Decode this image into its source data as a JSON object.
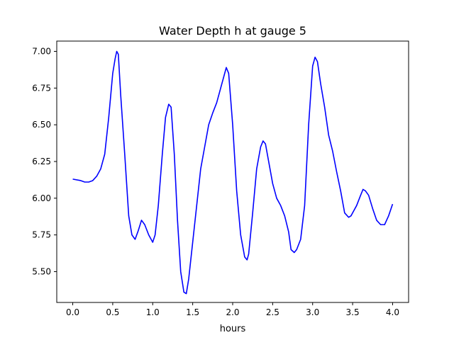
{
  "chart_data": {
    "type": "line",
    "title": "Water Depth h at gauge 5",
    "xlabel": "hours",
    "ylabel": "",
    "xlim": [
      -0.2,
      4.2
    ],
    "ylim": [
      5.29,
      7.07
    ],
    "xticks": [
      0.0,
      0.5,
      1.0,
      1.5,
      2.0,
      2.5,
      3.0,
      3.5,
      4.0
    ],
    "xtick_labels": [
      "0.0",
      "0.5",
      "1.0",
      "1.5",
      "2.0",
      "2.5",
      "3.0",
      "3.5",
      "4.0"
    ],
    "yticks": [
      5.5,
      5.75,
      6.0,
      6.25,
      6.5,
      6.75,
      7.0
    ],
    "ytick_labels": [
      "5.50",
      "5.75",
      "6.00",
      "6.25",
      "6.50",
      "6.75",
      "7.00"
    ],
    "grid": false,
    "series": [
      {
        "color": "#0000ff",
        "x": [
          0.0,
          0.1,
          0.15,
          0.2,
          0.25,
          0.3,
          0.35,
          0.4,
          0.45,
          0.5,
          0.53,
          0.55,
          0.57,
          0.6,
          0.65,
          0.7,
          0.74,
          0.78,
          0.82,
          0.86,
          0.9,
          0.95,
          1.0,
          1.03,
          1.07,
          1.12,
          1.16,
          1.2,
          1.23,
          1.27,
          1.31,
          1.35,
          1.39,
          1.42,
          1.45,
          1.5,
          1.55,
          1.6,
          1.65,
          1.7,
          1.75,
          1.8,
          1.85,
          1.9,
          1.92,
          1.95,
          2.0,
          2.05,
          2.1,
          2.15,
          2.18,
          2.2,
          2.25,
          2.3,
          2.35,
          2.38,
          2.41,
          2.45,
          2.5,
          2.55,
          2.6,
          2.65,
          2.7,
          2.73,
          2.77,
          2.8,
          2.85,
          2.9,
          2.95,
          3.0,
          3.03,
          3.06,
          3.1,
          3.15,
          3.2,
          3.25,
          3.3,
          3.35,
          3.4,
          3.45,
          3.48,
          3.5,
          3.55,
          3.6,
          3.63,
          3.66,
          3.7,
          3.75,
          3.8,
          3.85,
          3.9,
          3.95,
          4.0
        ],
        "y": [
          6.13,
          6.12,
          6.11,
          6.11,
          6.12,
          6.15,
          6.2,
          6.3,
          6.55,
          6.85,
          6.95,
          7.0,
          6.98,
          6.7,
          6.3,
          5.88,
          5.75,
          5.72,
          5.78,
          5.85,
          5.82,
          5.75,
          5.7,
          5.75,
          5.95,
          6.3,
          6.55,
          6.64,
          6.62,
          6.3,
          5.85,
          5.5,
          5.36,
          5.35,
          5.45,
          5.7,
          5.95,
          6.2,
          6.35,
          6.5,
          6.58,
          6.65,
          6.75,
          6.85,
          6.89,
          6.85,
          6.5,
          6.05,
          5.75,
          5.6,
          5.58,
          5.62,
          5.9,
          6.2,
          6.35,
          6.39,
          6.37,
          6.25,
          6.1,
          6.0,
          5.95,
          5.88,
          5.77,
          5.65,
          5.63,
          5.65,
          5.72,
          5.95,
          6.5,
          6.9,
          6.96,
          6.93,
          6.78,
          6.62,
          6.43,
          6.32,
          6.18,
          6.05,
          5.9,
          5.87,
          5.88,
          5.9,
          5.95,
          6.02,
          6.06,
          6.05,
          6.02,
          5.93,
          5.85,
          5.82,
          5.82,
          5.88,
          5.96
        ]
      }
    ]
  }
}
